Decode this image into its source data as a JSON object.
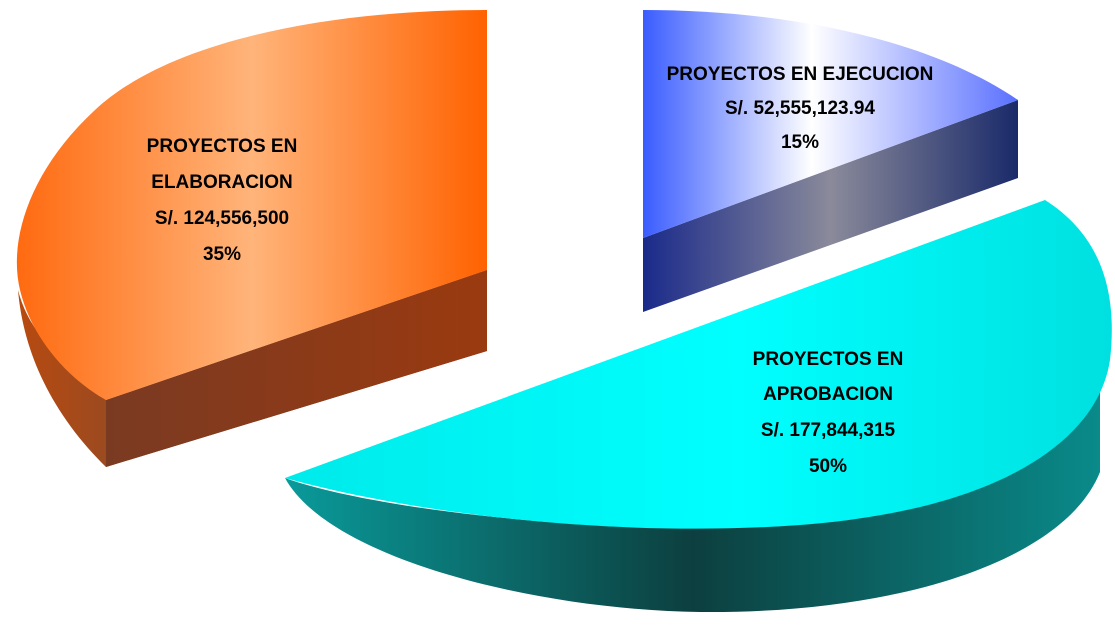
{
  "chart_data": {
    "type": "pie",
    "style": "3d-exploded",
    "currency": "S/.",
    "slices": [
      {
        "key": "elaboracion",
        "label_lines": [
          "PROYECTOS EN",
          "ELABORACION",
          "S/.  124,556,500",
          "35%"
        ],
        "value": 124556500,
        "percent": 35,
        "color": "#ff6a13"
      },
      {
        "key": "ejecucion",
        "label_lines": [
          "PROYECTOS EN EJECUCION",
          "S/.  52,555,123.94",
          "15%"
        ],
        "value": 52555123.94,
        "percent": 15,
        "color": "#3a5cff"
      },
      {
        "key": "aprobacion",
        "label_lines": [
          "PROYECTOS EN",
          "APROBACION",
          "S/. 177,844,315",
          "50%"
        ],
        "value": 177844315,
        "percent": 50,
        "color": "#00f5f5"
      }
    ]
  }
}
